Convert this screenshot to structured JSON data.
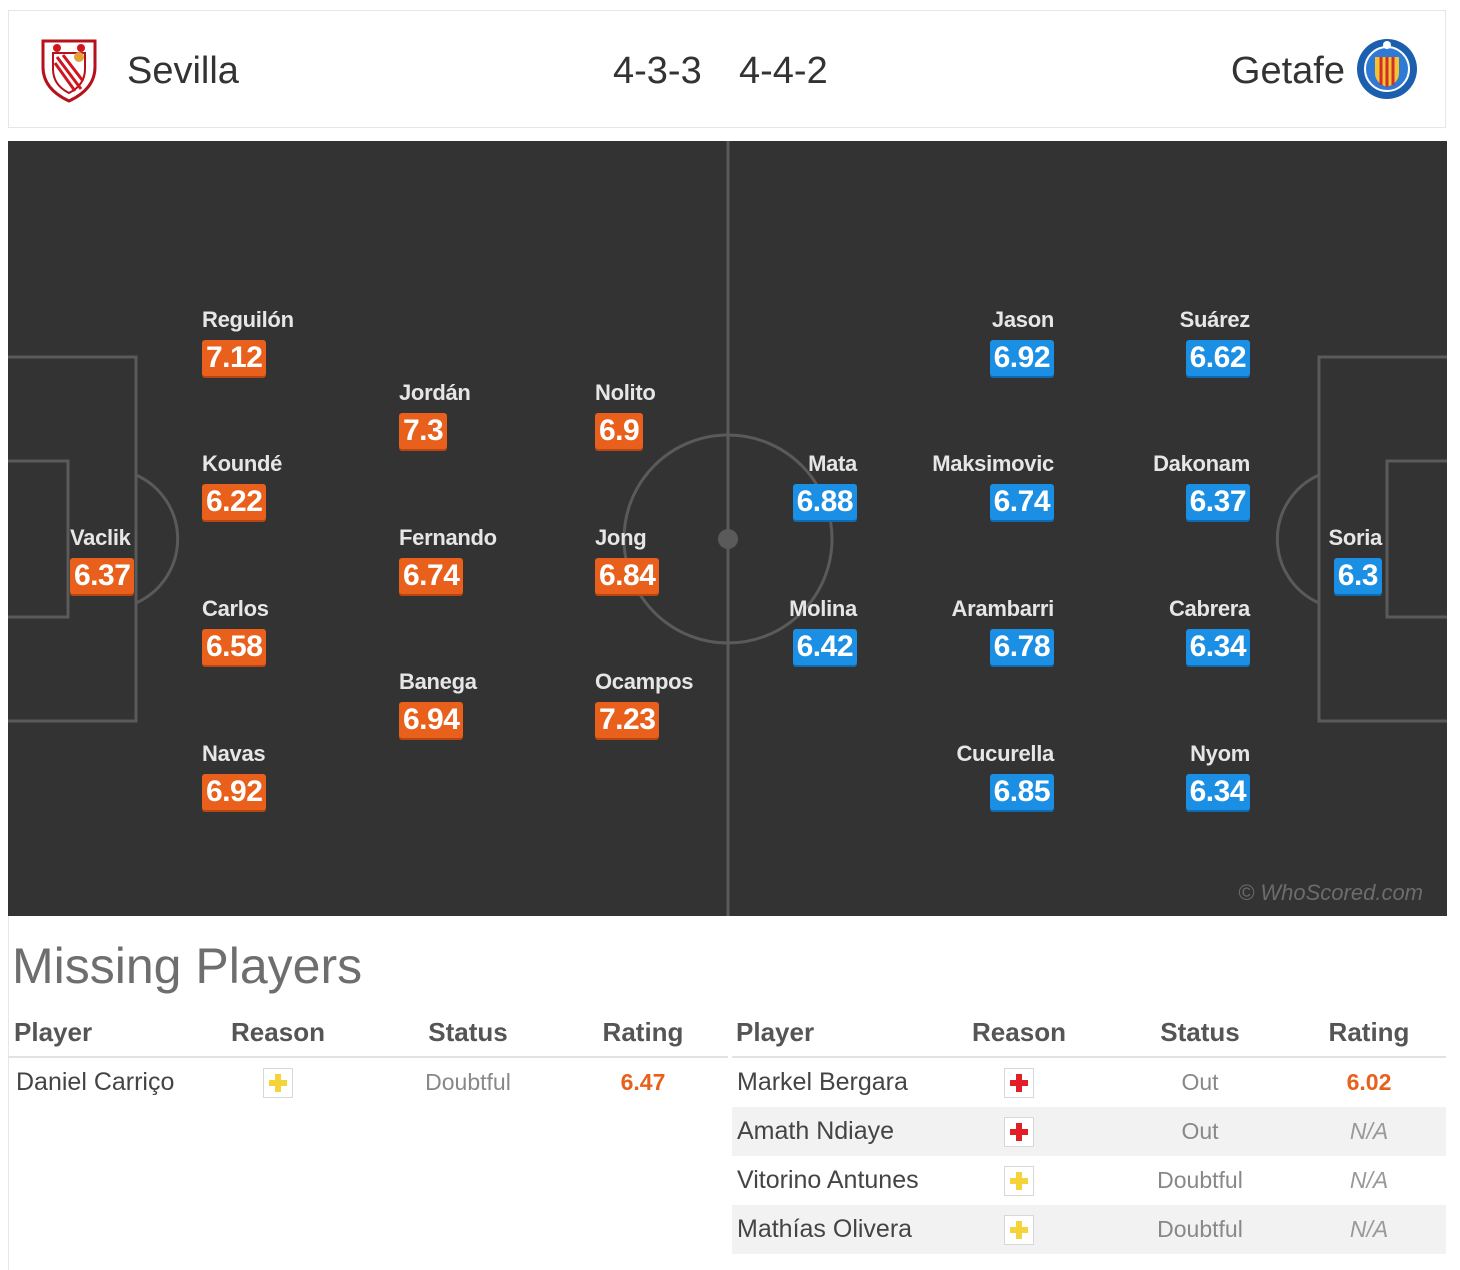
{
  "header": {
    "home_team": "Sevilla",
    "away_team": "Getafe",
    "home_formation": "4-3-3",
    "away_formation": "4-4-2"
  },
  "colors": {
    "home_rating": "#e8601c",
    "away_rating": "#1a8fe3",
    "pitch": "#333333"
  },
  "pitch": {
    "watermark": "© WhoScored.com",
    "home_players": [
      {
        "name": "Vaclik",
        "rating": "6.37"
      },
      {
        "name": "Reguilón",
        "rating": "7.12"
      },
      {
        "name": "Koundé",
        "rating": "6.22"
      },
      {
        "name": "Carlos",
        "rating": "6.58"
      },
      {
        "name": "Navas",
        "rating": "6.92"
      },
      {
        "name": "Jordán",
        "rating": "7.3"
      },
      {
        "name": "Fernando",
        "rating": "6.74"
      },
      {
        "name": "Banega",
        "rating": "6.94"
      },
      {
        "name": "Nolito",
        "rating": "6.9"
      },
      {
        "name": "Jong",
        "rating": "6.84"
      },
      {
        "name": "Ocampos",
        "rating": "7.23"
      }
    ],
    "away_players": [
      {
        "name": "Soria",
        "rating": "6.3"
      },
      {
        "name": "Suárez",
        "rating": "6.62"
      },
      {
        "name": "Dakonam",
        "rating": "6.37"
      },
      {
        "name": "Cabrera",
        "rating": "6.34"
      },
      {
        "name": "Nyom",
        "rating": "6.34"
      },
      {
        "name": "Jason",
        "rating": "6.92"
      },
      {
        "name": "Maksimovic",
        "rating": "6.74"
      },
      {
        "name": "Arambarri",
        "rating": "6.78"
      },
      {
        "name": "Cucurella",
        "rating": "6.85"
      },
      {
        "name": "Mata",
        "rating": "6.88"
      },
      {
        "name": "Molina",
        "rating": "6.42"
      }
    ]
  },
  "missing": {
    "title": "Missing Players",
    "columns": [
      "Player",
      "Reason",
      "Status",
      "Rating"
    ],
    "home": [
      {
        "player": "Daniel Carriço",
        "reason_icon": "doubtful-cross-icon",
        "status": "Doubtful",
        "rating": "6.47"
      }
    ],
    "away": [
      {
        "player": "Markel Bergara",
        "reason_icon": "injury-cross-icon",
        "status": "Out",
        "rating": "6.02"
      },
      {
        "player": "Amath Ndiaye",
        "reason_icon": "injury-cross-icon",
        "status": "Out",
        "rating": "N/A"
      },
      {
        "player": "Vitorino Antunes",
        "reason_icon": "doubtful-cross-icon",
        "status": "Doubtful",
        "rating": "N/A"
      },
      {
        "player": "Mathías Olivera",
        "reason_icon": "doubtful-cross-icon",
        "status": "Doubtful",
        "rating": "N/A"
      }
    ]
  }
}
